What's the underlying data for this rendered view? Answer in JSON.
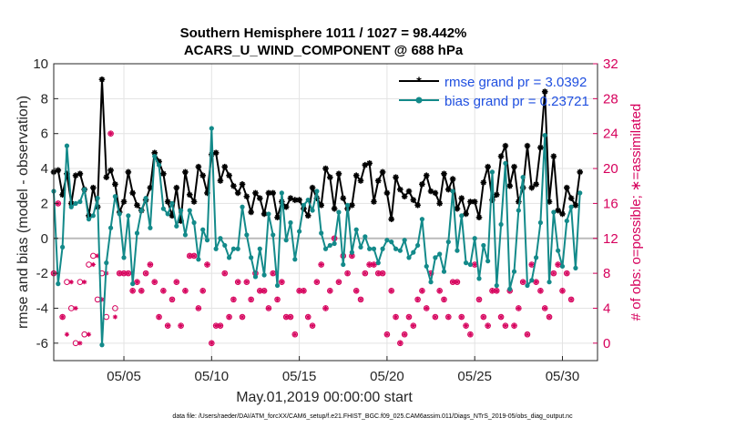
{
  "chart_data": {
    "type": "line",
    "title": "Southern Hemisphere 1011 / 1027 = 98.442%",
    "subtitle": "ACARS_U_WIND_COMPONENT @ 688 hPa",
    "xlabel": "May.01,2019 00:00:00 start",
    "ylabel": "rmse and bias (model - observation)",
    "ylabel_right": "# of obs: o=possible; ∗=assimilated",
    "footer": "data file: /Users/raeder/DAI/ATM_forcXX/CAM6_setup/f.e21.FHIST_BGC.f09_025.CAM6assim.011/Diags_NTrS_2019-05/obs_diag_output.nc",
    "xlim": [
      1,
      32
    ],
    "ylim": [
      -7,
      10
    ],
    "ylim_right": [
      -2,
      32
    ],
    "x_ticks": [
      5,
      10,
      15,
      20,
      25,
      30
    ],
    "x_tick_labels": [
      "05/05",
      "05/10",
      "05/15",
      "05/20",
      "05/25",
      "05/30"
    ],
    "y_ticks": [
      "10",
      "8",
      "6",
      "4",
      "2",
      "0",
      "-2",
      "-4",
      "-6"
    ],
    "y_right_ticks": [
      "32",
      "28",
      "24",
      "20",
      "16",
      "12",
      "8",
      "4",
      "0"
    ],
    "grid": true,
    "legend_position": "top-right",
    "legend": [
      "rmse grand pr = 3.0392",
      "bias grand pr = 0.23721"
    ],
    "colors": {
      "rmse": "#000000",
      "bias": "#138a8a",
      "obs": "#d6005c",
      "zero": "#bbbbbb",
      "legend_text": "#1f4fe0"
    },
    "x_start": 1.0,
    "x_step": 0.25,
    "series": [
      {
        "name": "rmse",
        "values": [
          3.8,
          3.9,
          2.5,
          3.7,
          2.0,
          3.6,
          3.7,
          2.8,
          1.3,
          2.9,
          1.8,
          9.1,
          3.5,
          3.9,
          3.1,
          1.5,
          2.1,
          3.8,
          2.6,
          1.9,
          1.6,
          2.2,
          2.9,
          4.9,
          4.4,
          3.7,
          2.1,
          1.3,
          2.9,
          1.0,
          3.8,
          2.5,
          2.1,
          4.1,
          3.6,
          2.6,
          4.8,
          4.9,
          3.3,
          4.1,
          3.6,
          3.0,
          2.6,
          3.1,
          2.4,
          1.5,
          2.6,
          2.3,
          1.4,
          2.6,
          2.6,
          1.2,
          2.1,
          1.8,
          2.3,
          2.2,
          2.2,
          1.7,
          1.3,
          2.9,
          2.3,
          1.9,
          4.0,
          3.5,
          1.7,
          3.7,
          2.3,
          1.7,
          1.9,
          3.6,
          3.3,
          4.2,
          4.3,
          2.1,
          3.3,
          3.8,
          2.6,
          1.1,
          3.5,
          2.8,
          2.4,
          2.7,
          2.2,
          1.9,
          3.1,
          3.6,
          2.7,
          2.6,
          2.0,
          3.7,
          2.8,
          3.4,
          1.7,
          2.3,
          1.4,
          2.1,
          2.1,
          1.2,
          3.2,
          4.1,
          2.2,
          2.5,
          4.7,
          5.3,
          3.0,
          4.1,
          2.1,
          2.9,
          5.3,
          2.9,
          3.1,
          5.2,
          8.4,
          2.1,
          4.7,
          1.6,
          1.4,
          2.9,
          2.3,
          1.9,
          3.8
        ]
      },
      {
        "name": "bias",
        "values": [
          2.7,
          -2.6,
          -0.5,
          5.3,
          1.8,
          2.0,
          2.1,
          2.8,
          1.1,
          1.3,
          2.3,
          -6.1,
          -1.4,
          0.6,
          2.4,
          1.4,
          -1.1,
          1.3,
          -2.6,
          0.3,
          1.6,
          2.3,
          0.6,
          4.7,
          4.2,
          1.7,
          1.4,
          2.0,
          0.7,
          1.6,
          0.2,
          1.6,
          0.9,
          -1.2,
          0.5,
          -0.1,
          6.3,
          -0.6,
          0.0,
          -0.4,
          -1.1,
          -0.6,
          -0.6,
          1.8,
          0.2,
          -1.1,
          -2.2,
          -0.6,
          -2.1,
          1.4,
          0.2,
          -2.7,
          2.6,
          -0.1,
          0.9,
          -1.2,
          0.4,
          1.9,
          2.2,
          1.6,
          2.7,
          0.3,
          -0.6,
          -0.4,
          -0.3,
          1.5,
          -1.5,
          1.9,
          -0.8,
          0.5,
          -0.5,
          0.1,
          -0.6,
          -0.6,
          -1.4,
          -0.6,
          -0.1,
          -0.2,
          -0.6,
          -0.7,
          -0.1,
          -1.1,
          -0.8,
          -0.4,
          1.1,
          -1.6,
          -2.5,
          -1.1,
          -0.9,
          -1.9,
          -0.2,
          2.7,
          -0.7,
          1.3,
          -1.4,
          -1.5,
          0.0,
          -2.3,
          -0.4,
          -1.3,
          3.8,
          -2.7,
          0.8,
          4.3,
          -2.9,
          -1.9,
          1.6,
          3.5,
          -2.7,
          -2.4,
          -1.1,
          0.9,
          5.9,
          -2.5,
          1.5,
          -0.7,
          -1.6,
          1.0,
          1.8,
          -1.7,
          2.6
        ]
      },
      {
        "name": "obs_possible",
        "values": [
          8,
          16,
          3,
          7,
          4,
          0,
          7,
          1,
          9,
          10,
          5,
          8,
          3,
          24,
          4,
          8,
          8,
          8,
          6,
          7,
          6,
          8,
          9,
          7,
          3,
          6,
          2,
          5,
          7,
          2,
          6,
          10,
          10,
          4,
          6,
          9,
          0,
          2,
          2,
          8,
          3,
          5,
          7,
          3,
          7,
          5,
          8,
          6,
          6,
          4,
          8,
          5,
          7,
          3,
          3,
          1,
          6,
          6,
          3,
          2,
          7,
          9,
          4,
          6,
          12,
          7,
          10,
          8,
          10,
          6,
          5,
          8,
          9,
          9,
          8,
          8,
          1,
          6,
          3,
          0,
          1,
          3,
          2,
          5,
          6,
          4,
          8,
          3,
          6,
          5,
          3,
          7,
          7,
          3,
          2,
          1,
          9,
          5,
          3,
          2,
          6,
          6,
          3,
          2,
          6,
          2,
          4,
          7,
          1,
          9,
          7,
          6,
          4,
          3,
          8,
          9,
          6,
          8,
          5
        ]
      },
      {
        "name": "obs_assimilated",
        "values": [
          8,
          16,
          3,
          1,
          7,
          4,
          0,
          7,
          1,
          9,
          10,
          5,
          8,
          24,
          3,
          8,
          8,
          8,
          6,
          7,
          6,
          8,
          9,
          7,
          3,
          6,
          2,
          5,
          7,
          2,
          6,
          10,
          10,
          4,
          6,
          9,
          0,
          2,
          2,
          8,
          3,
          5,
          7,
          3,
          7,
          5,
          8,
          6,
          6,
          4,
          8,
          5,
          7,
          3,
          3,
          1,
          6,
          6,
          3,
          2,
          7,
          9,
          4,
          6,
          12,
          7,
          10,
          8,
          10,
          6,
          5,
          8,
          9,
          9,
          8,
          8,
          1,
          6,
          3,
          0,
          1,
          3,
          2,
          5,
          6,
          4,
          8,
          3,
          6,
          5,
          3,
          7,
          7,
          3,
          2,
          1,
          9,
          5,
          3,
          2,
          6,
          6,
          3,
          2,
          6,
          2,
          4,
          7,
          1,
          9,
          7,
          6,
          4,
          3,
          8,
          9,
          6,
          8,
          5
        ]
      }
    ]
  }
}
